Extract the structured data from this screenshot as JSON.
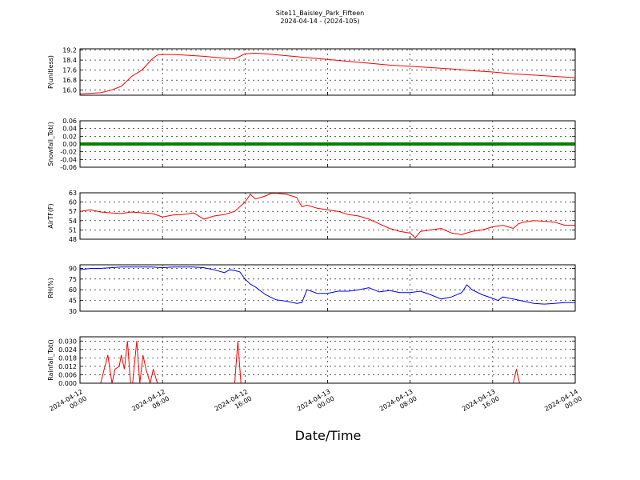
{
  "header": {
    "title": "Site11_Baisley_Park_Fifteen",
    "subtitle": "2024-04-14 - (2024-105)"
  },
  "x_label": "Date/Time",
  "x_ticks": [
    {
      "value": 0,
      "line1": "2024-04-12",
      "line2": "00:00"
    },
    {
      "value": 8,
      "line1": "2024-04-12",
      "line2": "08:00"
    },
    {
      "value": 16,
      "line1": "2024-04-12",
      "line2": "16:00"
    },
    {
      "value": 24,
      "line1": "2024-04-13",
      "line2": "00:00"
    },
    {
      "value": 32,
      "line1": "2024-04-13",
      "line2": "08:00"
    },
    {
      "value": 40,
      "line1": "2024-04-13",
      "line2": "16:00"
    },
    {
      "value": 48,
      "line1": "2024-04-14",
      "line2": "00:00"
    }
  ],
  "chart_data": [
    {
      "type": "line",
      "ylabel": "P(unitless)",
      "xlim": [
        0,
        48
      ],
      "ylim": [
        15.6,
        19.3
      ],
      "yticks": [
        "16.0",
        "16.8",
        "17.6",
        "18.4",
        "19.2"
      ],
      "grid": true,
      "color": "#ff0000",
      "x": [
        0,
        1,
        2,
        3,
        4,
        5,
        6,
        7,
        7.5,
        8,
        9,
        10,
        12,
        14,
        15,
        15.5,
        16,
        17,
        18,
        20,
        22,
        24,
        26,
        28,
        30,
        32,
        34,
        36,
        38,
        40,
        42,
        44,
        46,
        48
      ],
      "y": [
        15.7,
        15.75,
        15.8,
        16.0,
        16.3,
        17.1,
        17.6,
        18.5,
        18.8,
        18.85,
        18.85,
        18.8,
        18.7,
        18.55,
        18.5,
        18.7,
        18.9,
        18.95,
        18.9,
        18.75,
        18.6,
        18.45,
        18.3,
        18.15,
        18.0,
        17.9,
        17.8,
        17.7,
        17.55,
        17.45,
        17.3,
        17.2,
        17.1,
        17.0
      ]
    },
    {
      "type": "line",
      "ylabel": "Snowfall_Tot()",
      "xlim": [
        0,
        48
      ],
      "ylim": [
        -0.06,
        0.06
      ],
      "yticks": [
        "-0.06",
        "-0.04",
        "-0.02",
        "0.00",
        "0.02",
        "0.04",
        "0.06"
      ],
      "grid": true,
      "color": "#008000",
      "x": [
        0,
        48
      ],
      "y": [
        0,
        0
      ]
    },
    {
      "type": "line",
      "ylabel": "AirTF(F)",
      "xlim": [
        0,
        48
      ],
      "ylim": [
        48,
        63
      ],
      "yticks": [
        "48",
        "51",
        "54",
        "57",
        "60",
        "63"
      ],
      "grid": true,
      "color": "#ff0000",
      "x": [
        0,
        1,
        2,
        3,
        4,
        5,
        6,
        7,
        8,
        9,
        10,
        11,
        12,
        13,
        14,
        15,
        16,
        16.5,
        17,
        18,
        18.5,
        19,
        20,
        21,
        21.5,
        22,
        23,
        24,
        25,
        26,
        27,
        28,
        29,
        30,
        31,
        32,
        32.5,
        33,
        34,
        35,
        36,
        37,
        38,
        39,
        40,
        41,
        42,
        42.5,
        43,
        44,
        45,
        46,
        47,
        48
      ],
      "y": [
        57.0,
        57.5,
        56.8,
        56.5,
        56.3,
        56.8,
        56.5,
        56.3,
        55.2,
        55.8,
        56.0,
        56.5,
        54.5,
        55.5,
        56.0,
        57.0,
        60.0,
        62.5,
        61.0,
        62.0,
        62.8,
        62.9,
        62.5,
        61.5,
        58.5,
        59.0,
        58.0,
        57.5,
        57.0,
        56.0,
        55.5,
        54.5,
        53.0,
        51.5,
        50.5,
        50.0,
        48.5,
        50.5,
        51.0,
        51.5,
        50.0,
        49.5,
        50.5,
        51.0,
        52.0,
        52.5,
        51.5,
        53.0,
        53.5,
        54.0,
        53.8,
        53.5,
        52.5,
        52.5
      ]
    },
    {
      "type": "line",
      "ylabel": "RH(%)",
      "xlim": [
        0,
        48
      ],
      "ylim": [
        30,
        95
      ],
      "yticks": [
        "30",
        "45",
        "60",
        "75",
        "90"
      ],
      "grid": true,
      "color": "#0000ff",
      "x": [
        0,
        1,
        2,
        3,
        4,
        5,
        6,
        7,
        8,
        9,
        10,
        11,
        12,
        13,
        14,
        14.5,
        15,
        15.5,
        16,
        16.5,
        17,
        18,
        19,
        20,
        21,
        21.5,
        22,
        23,
        24,
        25,
        26,
        27,
        28,
        29,
        30,
        31,
        32,
        33,
        34,
        35,
        36,
        37,
        37.5,
        38,
        39,
        40,
        40.5,
        41,
        42,
        43,
        44,
        45,
        46,
        47,
        48
      ],
      "y": [
        88,
        90,
        90,
        91,
        92,
        92,
        92,
        92,
        91,
        92,
        92,
        92,
        91,
        88,
        84,
        88,
        87,
        85,
        75,
        68,
        64,
        53,
        46,
        44,
        41,
        42,
        60,
        55,
        55,
        58,
        58,
        60,
        63,
        57,
        59,
        56,
        56,
        58,
        53,
        47,
        50,
        56,
        67,
        60,
        53,
        48,
        45,
        50,
        47,
        44,
        41,
        40,
        41,
        42,
        42
      ]
    },
    {
      "type": "line",
      "ylabel": "Rainfall_Tot()",
      "xlim": [
        0,
        48
      ],
      "ylim": [
        0,
        0.033
      ],
      "yticks": [
        "0.000",
        "0.006",
        "0.012",
        "0.018",
        "0.024",
        "0.030"
      ],
      "grid": true,
      "color": "#ff0000",
      "x": [
        0,
        2,
        2.7,
        3.1,
        3.4,
        3.8,
        4.0,
        4.3,
        4.6,
        4.9,
        5.1,
        5.5,
        5.8,
        6.1,
        6.4,
        6.8,
        7.1,
        7.5,
        15,
        15.3,
        15.6,
        42,
        42.3,
        42.6,
        48
      ],
      "y": [
        0,
        0,
        0.02,
        0,
        0.01,
        0.012,
        0.02,
        0.01,
        0.03,
        0,
        0,
        0.03,
        0,
        0.02,
        0.01,
        0,
        0.01,
        0,
        0,
        0.03,
        0,
        0,
        0.01,
        0,
        0
      ]
    }
  ]
}
